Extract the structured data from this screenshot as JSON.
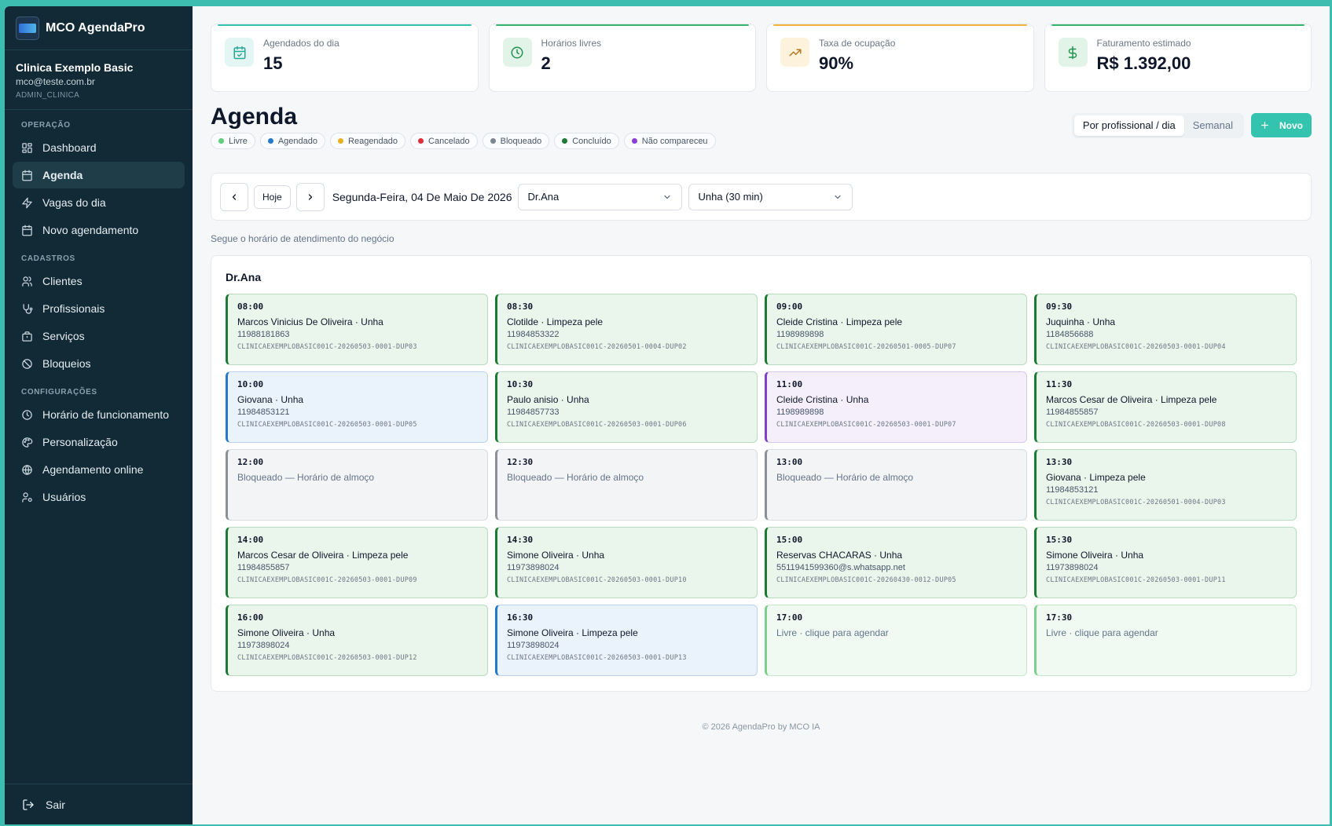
{
  "brand": {
    "name": "MCO AgendaPro"
  },
  "account": {
    "name": "Clinica Exemplo Basic",
    "email": "mco@teste.com.br",
    "role": "ADMIN_CLINICA"
  },
  "nav": {
    "sections": [
      {
        "title": "OPERAÇÃO",
        "items": [
          {
            "label": "Dashboard",
            "icon": "dashboard-icon",
            "active": false
          },
          {
            "label": "Agenda",
            "icon": "calendar-icon",
            "active": true
          },
          {
            "label": "Vagas do dia",
            "icon": "bolt-icon",
            "active": false
          },
          {
            "label": "Novo agendamento",
            "icon": "calendar-plus-icon",
            "active": false
          }
        ]
      },
      {
        "title": "CADASTROS",
        "items": [
          {
            "label": "Clientes",
            "icon": "users-icon",
            "active": false
          },
          {
            "label": "Profissionais",
            "icon": "stethoscope-icon",
            "active": false
          },
          {
            "label": "Serviços",
            "icon": "briefcase-icon",
            "active": false
          },
          {
            "label": "Bloqueios",
            "icon": "ban-icon",
            "active": false
          }
        ]
      },
      {
        "title": "CONFIGURAÇÕES",
        "items": [
          {
            "label": "Horário de funcionamento",
            "icon": "clock-icon",
            "active": false
          },
          {
            "label": "Personalização",
            "icon": "palette-icon",
            "active": false
          },
          {
            "label": "Agendamento online",
            "icon": "globe-icon",
            "active": false
          },
          {
            "label": "Usuários",
            "icon": "user-cog-icon",
            "active": false
          }
        ]
      }
    ],
    "logout": "Sair"
  },
  "stats": [
    {
      "label": "Agendados do dia",
      "value": "15",
      "icon": "calendar-check-icon",
      "accent": "#34c3ae",
      "icon_bg": "#e3f6f3",
      "icon_color": "#2aa896"
    },
    {
      "label": "Horários livres",
      "value": "2",
      "icon": "clock-icon",
      "accent": "#34b66a",
      "icon_bg": "#e2f4e8",
      "icon_color": "#22934f"
    },
    {
      "label": "Taxa de ocupação",
      "value": "90%",
      "icon": "trending-up-icon",
      "accent": "#f3b33d",
      "icon_bg": "#fdf3dd",
      "icon_color": "#b7791f"
    },
    {
      "label": "Faturamento estimado",
      "value": "R$ 1.392,00",
      "icon": "dollar-icon",
      "accent": "#34b66a",
      "icon_bg": "#e2f4e8",
      "icon_color": "#22934f"
    }
  ],
  "page": {
    "title": "Agenda"
  },
  "legend": [
    {
      "label": "Livre",
      "color": "#5fce7d"
    },
    {
      "label": "Agendado",
      "color": "#2479c9"
    },
    {
      "label": "Reagendado",
      "color": "#e8b21f"
    },
    {
      "label": "Cancelado",
      "color": "#dc2f3a"
    },
    {
      "label": "Bloqueado",
      "color": "#7d858d"
    },
    {
      "label": "Concluído",
      "color": "#1b7a33"
    },
    {
      "label": "Não compareceu",
      "color": "#8b3fd6"
    }
  ],
  "view": {
    "options": [
      "Por profissional / dia",
      "Semanal"
    ],
    "selected": "Por profissional / dia"
  },
  "new_button": "Novo",
  "toolbar": {
    "today_label": "Hoje",
    "date_label": "Segunda-Feira, 04 De Maio De 2026",
    "professional": "Dr.Ana",
    "service": "Unha (30 min)"
  },
  "hint": "Segue o horário de atendimento do negócio",
  "board": {
    "professional": "Dr.Ana",
    "slots": [
      {
        "time": "08:00",
        "status": "concluido",
        "title": "Marcos Vinicius De Oliveira · Unha",
        "phone": "11988181863",
        "code": "CLINICAEXEMPLOBASIC001C-20260503-0001-DUP03"
      },
      {
        "time": "08:30",
        "status": "concluido",
        "title": "Clotilde · Limpeza pele",
        "phone": "11984853322",
        "code": "CLINICAEXEMPLOBASIC001C-20260501-0004-DUP02"
      },
      {
        "time": "09:00",
        "status": "concluido",
        "title": "Cleide Cristina · Limpeza pele",
        "phone": "1198989898",
        "code": "CLINICAEXEMPLOBASIC001C-20260501-0005-DUP07"
      },
      {
        "time": "09:30",
        "status": "concluido",
        "title": "Juquinha · Unha",
        "phone": "1184856688",
        "code": "CLINICAEXEMPLOBASIC001C-20260503-0001-DUP04"
      },
      {
        "time": "10:00",
        "status": "agendado",
        "title": "Giovana · Unha",
        "phone": "11984853121",
        "code": "CLINICAEXEMPLOBASIC001C-20260503-0001-DUP05"
      },
      {
        "time": "10:30",
        "status": "concluido",
        "title": "Paulo anisio · Unha",
        "phone": "11984857733",
        "code": "CLINICAEXEMPLOBASIC001C-20260503-0001-DUP06"
      },
      {
        "time": "11:00",
        "status": "naocompareceu",
        "title": "Cleide Cristina · Unha",
        "phone": "1198989898",
        "code": "CLINICAEXEMPLOBASIC001C-20260503-0001-DUP07"
      },
      {
        "time": "11:30",
        "status": "concluido",
        "title": "Marcos Cesar de Oliveira · Limpeza pele",
        "phone": "11984855857",
        "code": "CLINICAEXEMPLOBASIC001C-20260503-0001-DUP08"
      },
      {
        "time": "12:00",
        "status": "bloqueado",
        "title": "Bloqueado — Horário de almoço"
      },
      {
        "time": "12:30",
        "status": "bloqueado",
        "title": "Bloqueado — Horário de almoço"
      },
      {
        "time": "13:00",
        "status": "bloqueado",
        "title": "Bloqueado — Horário de almoço"
      },
      {
        "time": "13:30",
        "status": "concluido",
        "title": "Giovana · Limpeza pele",
        "phone": "11984853121",
        "code": "CLINICAEXEMPLOBASIC001C-20260501-0004-DUP03"
      },
      {
        "time": "14:00",
        "status": "concluido",
        "title": "Marcos Cesar de Oliveira · Limpeza pele",
        "phone": "11984855857",
        "code": "CLINICAEXEMPLOBASIC001C-20260503-0001-DUP09"
      },
      {
        "time": "14:30",
        "status": "concluido",
        "title": "Simone Oliveira · Unha",
        "phone": "11973898024",
        "code": "CLINICAEXEMPLOBASIC001C-20260503-0001-DUP10"
      },
      {
        "time": "15:00",
        "status": "concluido",
        "title": "Reservas CHACARAS · Unha",
        "phone": "5511941599360@s.whatsapp.net",
        "code": "CLINICAEXEMPLOBASIC001C-20260430-0012-DUP05"
      },
      {
        "time": "15:30",
        "status": "concluido",
        "title": "Simone Oliveira · Unha",
        "phone": "11973898024",
        "code": "CLINICAEXEMPLOBASIC001C-20260503-0001-DUP11"
      },
      {
        "time": "16:00",
        "status": "concluido",
        "title": "Simone Oliveira · Unha",
        "phone": "11973898024",
        "code": "CLINICAEXEMPLOBASIC001C-20260503-0001-DUP12"
      },
      {
        "time": "16:30",
        "status": "agendado",
        "title": "Simone Oliveira · Limpeza pele",
        "phone": "11973898024",
        "code": "CLINICAEXEMPLOBASIC001C-20260503-0001-DUP13"
      },
      {
        "time": "17:00",
        "status": "livre",
        "title": "Livre · clique para agendar"
      },
      {
        "time": "17:30",
        "status": "livre",
        "title": "Livre · clique para agendar"
      }
    ]
  },
  "footer": "© 2026 AgendaPro by MCO IA"
}
